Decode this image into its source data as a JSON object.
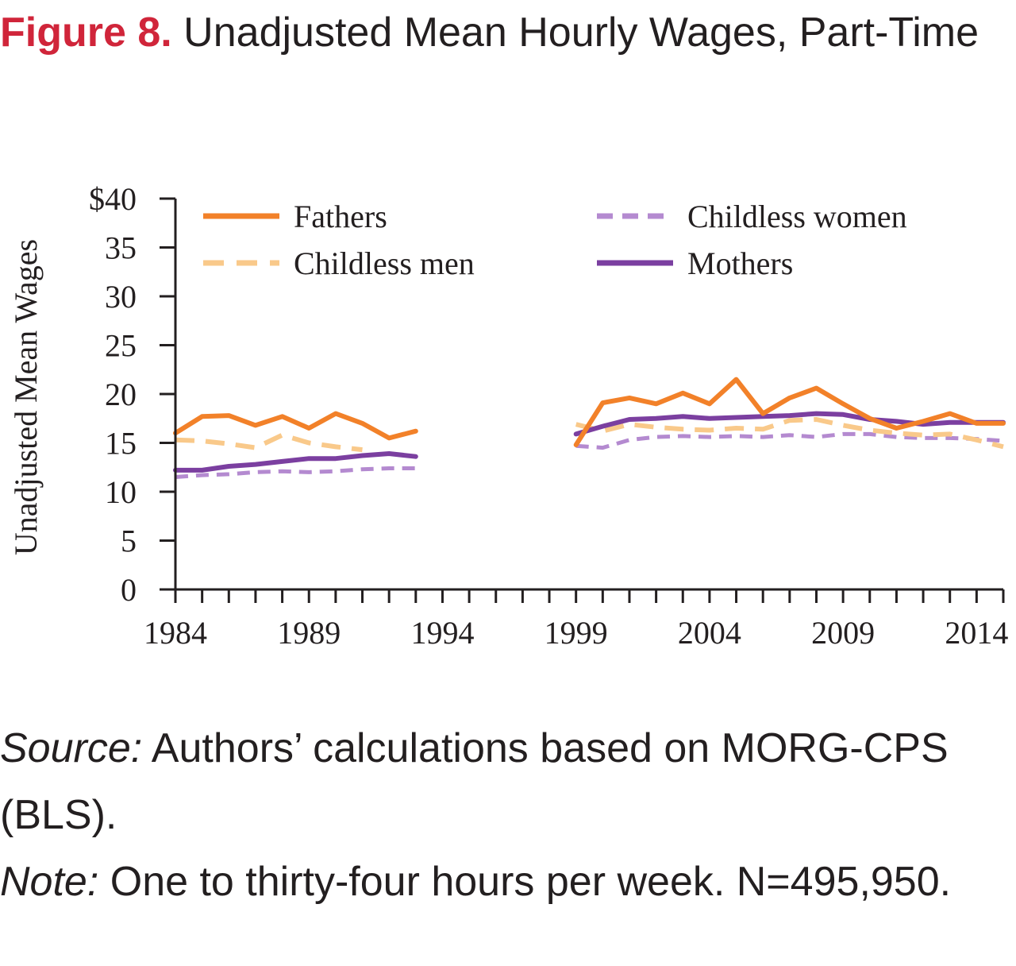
{
  "figure": {
    "label": "Figure 8.",
    "title": "Unadjusted Mean Hourly Wages, Part-Time"
  },
  "colors": {
    "title_label": "#d0253a",
    "fathers": "#f28129",
    "childless_men": "#f9c98a",
    "childless_women": "#b48ad0",
    "mothers": "#7b3fa0",
    "axis": "#231f20"
  },
  "chart_data": {
    "type": "line",
    "ylabel": "Unadjusted Mean Wages",
    "xlabel": "",
    "xlim": [
      1984,
      2015
    ],
    "ylim": [
      0,
      40
    ],
    "y_ticks": [
      0,
      5,
      10,
      15,
      20,
      25,
      30,
      35,
      40
    ],
    "y_tick_labels": [
      "0",
      "5",
      "10",
      "15",
      "20",
      "25",
      "30",
      "35",
      "$40"
    ],
    "x_tick_labels": [
      "1984",
      "1989",
      "1994",
      "1999",
      "2004",
      "2009",
      "2014"
    ],
    "x_tick_values": [
      1984,
      1989,
      1994,
      1999,
      2004,
      2009,
      2014
    ],
    "grid": false,
    "legend_position": "top",
    "series": [
      {
        "name": "Fathers",
        "style": "solid",
        "segments": [
          {
            "x": [
              1984,
              1985,
              1986,
              1987,
              1988,
              1989,
              1990,
              1991,
              1992,
              1993
            ],
            "y": [
              16.0,
              17.7,
              17.8,
              16.8,
              17.7,
              16.5,
              18.0,
              17.0,
              15.5,
              16.2
            ]
          },
          {
            "x": [
              1999,
              2000,
              2001,
              2002,
              2003,
              2004,
              2005,
              2006,
              2007,
              2008,
              2009,
              2010,
              2011,
              2012,
              2013,
              2014,
              2015
            ],
            "y": [
              14.8,
              19.1,
              19.6,
              19.0,
              20.1,
              19.0,
              21.5,
              18.0,
              19.6,
              20.6,
              19.0,
              17.5,
              16.5,
              17.2,
              18.0,
              17.0,
              17.0
            ]
          }
        ]
      },
      {
        "name": "Childless men",
        "style": "dashed",
        "segments": [
          {
            "x": [
              1984,
              1985,
              1986,
              1987,
              1988,
              1989,
              1990,
              1991
            ],
            "y": [
              15.3,
              15.2,
              14.9,
              14.5,
              15.8,
              15.0,
              14.6,
              14.3
            ]
          },
          {
            "x": [
              1999,
              2000,
              2001,
              2002,
              2003,
              2004,
              2005,
              2006,
              2007,
              2008,
              2009,
              2010,
              2011,
              2012,
              2013,
              2014,
              2015
            ],
            "y": [
              16.9,
              16.2,
              16.9,
              16.6,
              16.4,
              16.3,
              16.5,
              16.4,
              17.3,
              17.4,
              16.8,
              16.3,
              16.0,
              15.8,
              15.9,
              15.3,
              14.6
            ]
          }
        ]
      },
      {
        "name": "Childless women",
        "style": "dashed",
        "segments": [
          {
            "x": [
              1984,
              1985,
              1986,
              1987,
              1988,
              1989,
              1990,
              1991,
              1992,
              1993
            ],
            "y": [
              11.5,
              11.7,
              11.8,
              12.0,
              12.1,
              12.0,
              12.1,
              12.3,
              12.4,
              12.4
            ]
          },
          {
            "x": [
              1999,
              2000,
              2001,
              2002,
              2003,
              2004,
              2005,
              2006,
              2007,
              2008,
              2009,
              2010,
              2011,
              2012,
              2013,
              2014,
              2015
            ],
            "y": [
              14.7,
              14.5,
              15.3,
              15.6,
              15.7,
              15.6,
              15.7,
              15.6,
              15.8,
              15.6,
              15.9,
              15.9,
              15.6,
              15.5,
              15.5,
              15.4,
              15.2
            ]
          }
        ]
      },
      {
        "name": "Mothers",
        "style": "solid",
        "segments": [
          {
            "x": [
              1984,
              1985,
              1986,
              1987,
              1988,
              1989,
              1990,
              1991,
              1992,
              1993
            ],
            "y": [
              12.2,
              12.2,
              12.6,
              12.8,
              13.1,
              13.4,
              13.4,
              13.7,
              13.9,
              13.6
            ]
          },
          {
            "x": [
              1999,
              2000,
              2001,
              2002,
              2003,
              2004,
              2005,
              2006,
              2007,
              2008,
              2009,
              2010,
              2011,
              2012,
              2013,
              2014,
              2015
            ],
            "y": [
              15.9,
              16.7,
              17.4,
              17.5,
              17.7,
              17.5,
              17.6,
              17.7,
              17.8,
              18.0,
              17.9,
              17.4,
              17.2,
              16.9,
              17.1,
              17.1,
              17.1
            ]
          }
        ]
      }
    ]
  },
  "notes": {
    "source_label": "Source:",
    "source_text": " Authors’ calculations based on MORG-CPS (BLS).",
    "note_label": "Note:",
    "note_text": " One to thirty-four hours per week. N=495,950."
  }
}
